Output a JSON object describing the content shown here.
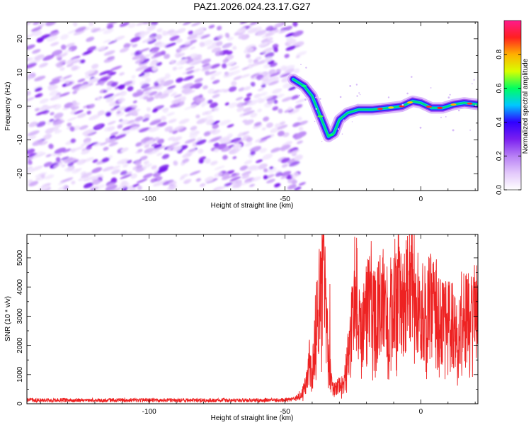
{
  "figure_title": "PAZ1.2026.024.23.17.G27",
  "chart_data": [
    {
      "type": "heatmap",
      "title": "PAZ1.2026.024.23.17.G27",
      "xlabel": "Height of straight line (km)",
      "ylabel": "Frequency (Hz)",
      "xlim": [
        -145,
        21
      ],
      "ylim": [
        -25,
        25
      ],
      "x_ticks": [
        -100,
        -50,
        0
      ],
      "y_ticks": [
        -20,
        -10,
        0,
        10,
        20
      ],
      "x_tick_labels": [
        "-100",
        "-50",
        "0"
      ],
      "y_tick_labels": [
        "-20",
        "-10",
        "0",
        "10",
        "20"
      ],
      "noise_region_x": [
        -145,
        -45
      ],
      "signal_trace": [
        {
          "x": -47,
          "y": 8
        },
        {
          "x": -43,
          "y": 6
        },
        {
          "x": -40,
          "y": 3
        },
        {
          "x": -38,
          "y": -1
        },
        {
          "x": -36,
          "y": -5
        },
        {
          "x": -34,
          "y": -9
        },
        {
          "x": -32,
          "y": -8
        },
        {
          "x": -30,
          "y": -4
        },
        {
          "x": -27,
          "y": -2
        },
        {
          "x": -23,
          "y": -1
        },
        {
          "x": -18,
          "y": -1
        },
        {
          "x": -12,
          "y": -0.5
        },
        {
          "x": -7,
          "y": 0
        },
        {
          "x": -3,
          "y": 1.5
        },
        {
          "x": 0,
          "y": 1
        },
        {
          "x": 4,
          "y": -0.5
        },
        {
          "x": 8,
          "y": -0.5
        },
        {
          "x": 12,
          "y": 0.5
        },
        {
          "x": 16,
          "y": 1
        },
        {
          "x": 21,
          "y": 0.5
        }
      ],
      "colorbar": {
        "label": "Normalized spectral amplitude",
        "range": [
          0,
          1
        ],
        "ticks": [
          0.0,
          0.2,
          0.4,
          0.6,
          0.8
        ],
        "tick_labels": [
          "0.0",
          "0.2",
          "0.4",
          "0.6",
          "0.8"
        ],
        "colormap": [
          "#ffffff",
          "#e3c8fb",
          "#b77ff5",
          "#7a1ff0",
          "#3000ff",
          "#00c8ff",
          "#00ff60",
          "#d8ff00",
          "#ffb000",
          "#ff2020",
          "#ff1a8c"
        ]
      }
    },
    {
      "type": "line",
      "xlabel": "Height of straight line (km)",
      "ylabel": "SNR (10 * v/v)",
      "xlim": [
        -145,
        21
      ],
      "ylim": [
        0,
        5800
      ],
      "x_ticks": [
        -100,
        -50,
        0
      ],
      "y_ticks": [
        0,
        1000,
        2000,
        3000,
        4000,
        5000
      ],
      "x_tick_labels": [
        "-100",
        "-50",
        "0"
      ],
      "y_tick_labels": [
        "0",
        "1000",
        "2000",
        "3000",
        "4000",
        "5000"
      ],
      "color": "#ee2222",
      "series": [
        {
          "name": "SNR",
          "envelope": [
            {
              "x": -145,
              "y": 120
            },
            {
              "x": -100,
              "y": 120
            },
            {
              "x": -50,
              "y": 120
            },
            {
              "x": -46,
              "y": 180
            },
            {
              "x": -44,
              "y": 300
            },
            {
              "x": -42,
              "y": 700
            },
            {
              "x": -41,
              "y": 1500
            },
            {
              "x": -40,
              "y": 800
            },
            {
              "x": -39,
              "y": 2500
            },
            {
              "x": -38,
              "y": 3500
            },
            {
              "x": -37,
              "y": 3800
            },
            {
              "x": -36,
              "y": 5200
            },
            {
              "x": -35,
              "y": 3000
            },
            {
              "x": -34,
              "y": 1600
            },
            {
              "x": -33,
              "y": 700
            },
            {
              "x": -32,
              "y": 500
            },
            {
              "x": -30,
              "y": 600
            },
            {
              "x": -28,
              "y": 800
            },
            {
              "x": -27,
              "y": 1500
            },
            {
              "x": -26,
              "y": 2200
            },
            {
              "x": -25,
              "y": 3200
            },
            {
              "x": -24,
              "y": 4200
            },
            {
              "x": -23,
              "y": 3000
            },
            {
              "x": -22,
              "y": 2400
            },
            {
              "x": -20,
              "y": 3100
            },
            {
              "x": -18,
              "y": 3400
            },
            {
              "x": -16,
              "y": 3300
            },
            {
              "x": -14,
              "y": 3500
            },
            {
              "x": -12,
              "y": 3300
            },
            {
              "x": -10,
              "y": 3600
            },
            {
              "x": -8,
              "y": 3900
            },
            {
              "x": -6,
              "y": 3700
            },
            {
              "x": -4,
              "y": 3900
            },
            {
              "x": -3,
              "y": 4200
            },
            {
              "x": -2,
              "y": 3800
            },
            {
              "x": 0,
              "y": 3300
            },
            {
              "x": 2,
              "y": 3200
            },
            {
              "x": 4,
              "y": 3400
            },
            {
              "x": 6,
              "y": 3200
            },
            {
              "x": 8,
              "y": 2700
            },
            {
              "x": 10,
              "y": 2800
            },
            {
              "x": 12,
              "y": 2700
            },
            {
              "x": 14,
              "y": 2600
            },
            {
              "x": 16,
              "y": 2900
            },
            {
              "x": 18,
              "y": 2900
            },
            {
              "x": 21,
              "y": 2800
            }
          ],
          "peaks": [
            {
              "x": -36,
              "y": 5750
            },
            {
              "x": -33.5,
              "y": 4100
            },
            {
              "x": -24,
              "y": 4350
            },
            {
              "x": -3,
              "y": 5150
            }
          ]
        }
      ]
    }
  ]
}
